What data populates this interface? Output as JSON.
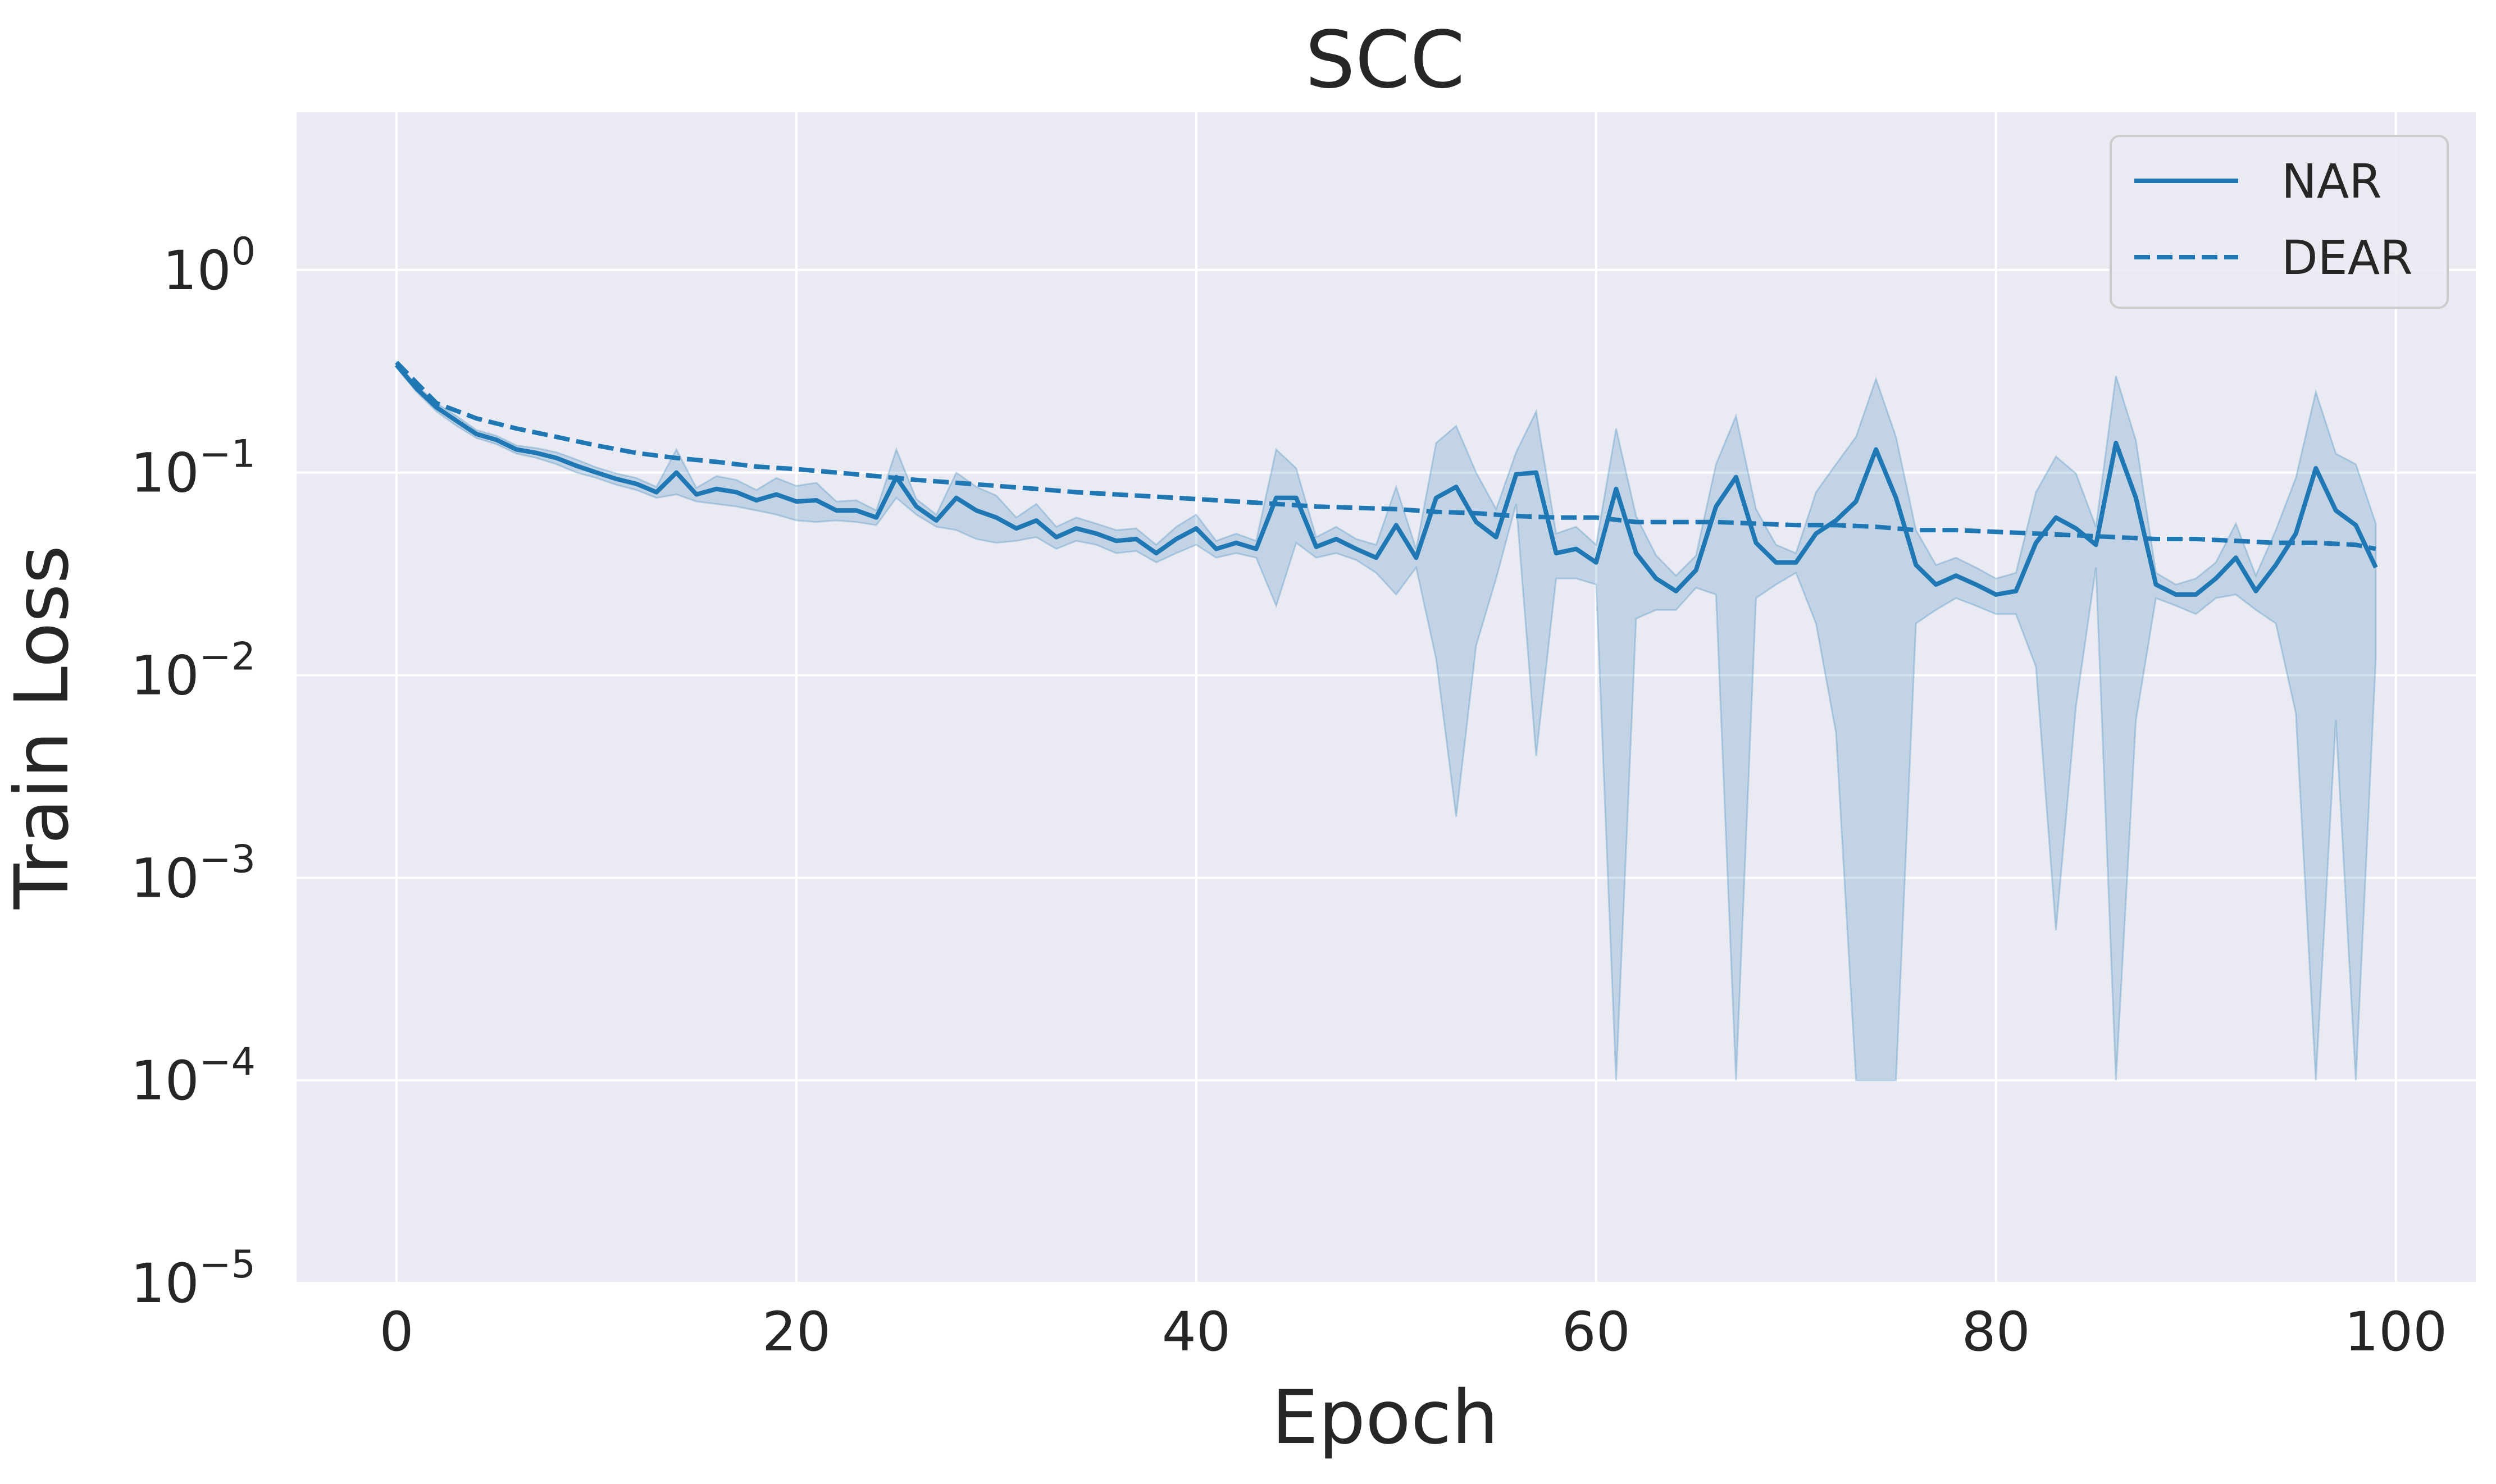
{
  "chart_data": {
    "type": "line",
    "title": "SCC",
    "xlabel": "Epoch",
    "ylabel": "Train Loss",
    "xlim": [
      -5,
      104
    ],
    "ylim": [
      1e-05,
      6
    ],
    "yscale": "log",
    "grid": true,
    "legend_position": "top-right",
    "xticks": [
      0,
      20,
      40,
      60,
      80,
      100
    ],
    "xtick_labels": [
      "0",
      "20",
      "40",
      "60",
      "80",
      "100"
    ],
    "yticks": [
      {
        "value": 1,
        "base": "10",
        "exp": "0"
      },
      {
        "value": 0.1,
        "base": "10",
        "exp": "−1"
      },
      {
        "value": 0.01,
        "base": "10",
        "exp": "−2"
      },
      {
        "value": 0.001,
        "base": "10",
        "exp": "−3"
      },
      {
        "value": 0.0001,
        "base": "10",
        "exp": "−4"
      },
      {
        "value": 1e-05,
        "base": "10",
        "exp": "−5"
      }
    ],
    "colors": {
      "line": "#1f77b4",
      "band": "#1f77b4",
      "background": "#eaeaf2",
      "grid": "#ffffff"
    },
    "series": [
      {
        "name": "NAR",
        "style": "solid",
        "x": [
          0,
          1,
          2,
          3,
          4,
          5,
          6,
          7,
          8,
          9,
          10,
          11,
          12,
          13,
          14,
          15,
          16,
          17,
          18,
          19,
          20,
          21,
          22,
          23,
          24,
          25,
          26,
          27,
          28,
          29,
          30,
          31,
          32,
          33,
          34,
          35,
          36,
          37,
          38,
          39,
          40,
          41,
          42,
          43,
          44,
          45,
          46,
          47,
          48,
          49,
          50,
          51,
          52,
          53,
          54,
          55,
          56,
          57,
          58,
          59,
          60,
          61,
          62,
          63,
          64,
          65,
          66,
          67,
          68,
          69,
          70,
          71,
          72,
          73,
          74,
          75,
          76,
          77,
          78,
          79,
          80,
          81,
          82,
          83,
          84,
          85,
          86,
          87,
          88,
          89,
          90,
          91,
          92,
          93,
          94,
          95,
          96,
          97,
          98,
          99
        ],
        "y": [
          0.34,
          0.26,
          0.21,
          0.18,
          0.155,
          0.145,
          0.13,
          0.125,
          0.118,
          0.108,
          0.1,
          0.093,
          0.088,
          0.08,
          0.1,
          0.078,
          0.083,
          0.08,
          0.073,
          0.078,
          0.072,
          0.073,
          0.065,
          0.065,
          0.06,
          0.095,
          0.068,
          0.058,
          0.075,
          0.065,
          0.06,
          0.053,
          0.058,
          0.048,
          0.053,
          0.05,
          0.046,
          0.047,
          0.04,
          0.047,
          0.053,
          0.042,
          0.045,
          0.042,
          0.075,
          0.075,
          0.043,
          0.047,
          0.042,
          0.038,
          0.055,
          0.038,
          0.075,
          0.085,
          0.057,
          0.048,
          0.098,
          0.1,
          0.04,
          0.042,
          0.036,
          0.083,
          0.04,
          0.03,
          0.026,
          0.033,
          0.068,
          0.095,
          0.045,
          0.036,
          0.036,
          0.05,
          0.058,
          0.072,
          0.13,
          0.075,
          0.035,
          0.028,
          0.031,
          0.028,
          0.025,
          0.026,
          0.045,
          0.06,
          0.053,
          0.044,
          0.14,
          0.075,
          0.028,
          0.025,
          0.025,
          0.03,
          0.038,
          0.026,
          0.035,
          0.05,
          0.105,
          0.065,
          0.055,
          0.034
        ]
      },
      {
        "name": "DEAR",
        "style": "dashed",
        "x": [
          0,
          2,
          4,
          6,
          8,
          10,
          12,
          14,
          16,
          18,
          20,
          22,
          24,
          26,
          28,
          30,
          32,
          34,
          36,
          38,
          40,
          42,
          44,
          46,
          48,
          50,
          52,
          54,
          56,
          58,
          60,
          62,
          64,
          66,
          68,
          70,
          72,
          74,
          76,
          78,
          80,
          82,
          84,
          86,
          88,
          90,
          92,
          94,
          96,
          98,
          99
        ],
        "y": [
          0.35,
          0.22,
          0.185,
          0.165,
          0.15,
          0.136,
          0.125,
          0.118,
          0.113,
          0.107,
          0.104,
          0.1,
          0.096,
          0.092,
          0.089,
          0.086,
          0.083,
          0.08,
          0.078,
          0.076,
          0.074,
          0.072,
          0.07,
          0.068,
          0.067,
          0.066,
          0.064,
          0.063,
          0.061,
          0.06,
          0.06,
          0.057,
          0.057,
          0.057,
          0.056,
          0.055,
          0.055,
          0.054,
          0.052,
          0.052,
          0.051,
          0.05,
          0.049,
          0.048,
          0.047,
          0.047,
          0.046,
          0.045,
          0.045,
          0.044,
          0.042
        ]
      }
    ],
    "band": {
      "series": "NAR",
      "lower": [
        0.33,
        0.25,
        0.2,
        0.17,
        0.148,
        0.138,
        0.124,
        0.118,
        0.11,
        0.1,
        0.094,
        0.087,
        0.082,
        0.075,
        0.078,
        0.072,
        0.07,
        0.068,
        0.065,
        0.062,
        0.058,
        0.057,
        0.058,
        0.057,
        0.055,
        0.075,
        0.062,
        0.054,
        0.052,
        0.047,
        0.045,
        0.046,
        0.048,
        0.042,
        0.046,
        0.044,
        0.04,
        0.041,
        0.036,
        0.04,
        0.044,
        0.038,
        0.04,
        0.038,
        0.022,
        0.045,
        0.038,
        0.04,
        0.037,
        0.032,
        0.025,
        0.034,
        0.012,
        0.002,
        0.014,
        0.03,
        0.07,
        0.004,
        0.03,
        0.03,
        0.028,
        0.0001,
        0.019,
        0.021,
        0.021,
        0.027,
        0.025,
        0.0001,
        0.024,
        0.028,
        0.032,
        0.018,
        0.0052,
        0.0001,
        0.0001,
        0.0001,
        0.018,
        0.021,
        0.024,
        0.022,
        0.02,
        0.02,
        0.011,
        0.00055,
        0.007,
        0.034,
        0.0001,
        0.006,
        0.024,
        0.022,
        0.02,
        0.024,
        0.025,
        0.021,
        0.018,
        0.0065,
        0.0001,
        0.006,
        0.0001,
        0.012
      ],
      "upper": [
        0.35,
        0.27,
        0.22,
        0.19,
        0.162,
        0.152,
        0.136,
        0.132,
        0.126,
        0.116,
        0.106,
        0.099,
        0.094,
        0.085,
        0.13,
        0.084,
        0.096,
        0.092,
        0.082,
        0.094,
        0.086,
        0.089,
        0.072,
        0.073,
        0.065,
        0.13,
        0.074,
        0.062,
        0.1,
        0.085,
        0.077,
        0.06,
        0.07,
        0.054,
        0.06,
        0.056,
        0.052,
        0.053,
        0.044,
        0.054,
        0.062,
        0.046,
        0.05,
        0.046,
        0.13,
        0.105,
        0.048,
        0.054,
        0.047,
        0.044,
        0.085,
        0.042,
        0.14,
        0.17,
        0.1,
        0.066,
        0.126,
        0.2,
        0.05,
        0.054,
        0.044,
        0.165,
        0.061,
        0.039,
        0.031,
        0.039,
        0.11,
        0.19,
        0.066,
        0.044,
        0.04,
        0.08,
        0.11,
        0.15,
        0.29,
        0.15,
        0.052,
        0.035,
        0.038,
        0.034,
        0.03,
        0.032,
        0.08,
        0.12,
        0.099,
        0.054,
        0.3,
        0.144,
        0.032,
        0.028,
        0.03,
        0.036,
        0.056,
        0.031,
        0.052,
        0.094,
        0.25,
        0.124,
        0.11,
        0.056
      ]
    }
  }
}
